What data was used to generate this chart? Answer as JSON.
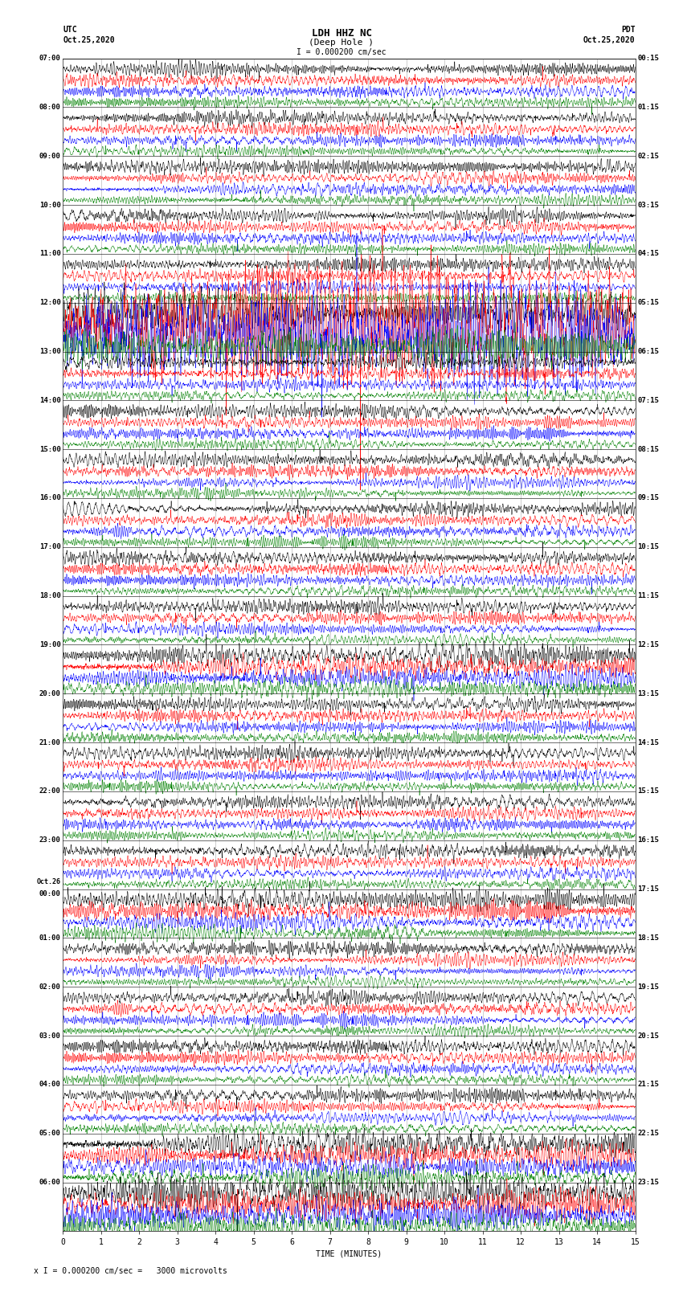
{
  "title_line1": "LDH HHZ NC",
  "title_line2": "(Deep Hole )",
  "scale_label": "I = 0.000200 cm/sec",
  "utc_label": "UTC",
  "utc_date": "Oct.25,2020",
  "pdt_label": "PDT",
  "pdt_date": "Oct.25,2020",
  "xlabel": "TIME (MINUTES)",
  "footer": "x I = 0.000200 cm/sec =   3000 microvolts",
  "left_times": [
    "07:00",
    "08:00",
    "09:00",
    "10:00",
    "11:00",
    "12:00",
    "13:00",
    "14:00",
    "15:00",
    "16:00",
    "17:00",
    "18:00",
    "19:00",
    "20:00",
    "21:00",
    "22:00",
    "23:00",
    "Oct.26\n00:00",
    "01:00",
    "02:00",
    "03:00",
    "04:00",
    "05:00",
    "06:00"
  ],
  "right_times": [
    "00:15",
    "01:15",
    "02:15",
    "03:15",
    "04:15",
    "05:15",
    "06:15",
    "07:15",
    "08:15",
    "09:15",
    "10:15",
    "11:15",
    "12:15",
    "13:15",
    "14:15",
    "15:15",
    "16:15",
    "17:15",
    "18:15",
    "19:15",
    "20:15",
    "21:15",
    "22:15",
    "23:15"
  ],
  "trace_colors": [
    "black",
    "red",
    "blue",
    "green"
  ],
  "n_rows": 24,
  "traces_per_row": 4,
  "background_color": "white",
  "grid_color": "#888888",
  "tick_label_fontsize": 7,
  "title_fontsize": 9,
  "label_fontsize": 7,
  "x_ticks": [
    0,
    1,
    2,
    3,
    4,
    5,
    6,
    7,
    8,
    9,
    10,
    11,
    12,
    13,
    14,
    15
  ],
  "x_lim": [
    0,
    15
  ],
  "special_rows": {
    "5": 3.5,
    "12": 1.8,
    "17": 1.5,
    "22": 2.0,
    "23": 2.5
  }
}
